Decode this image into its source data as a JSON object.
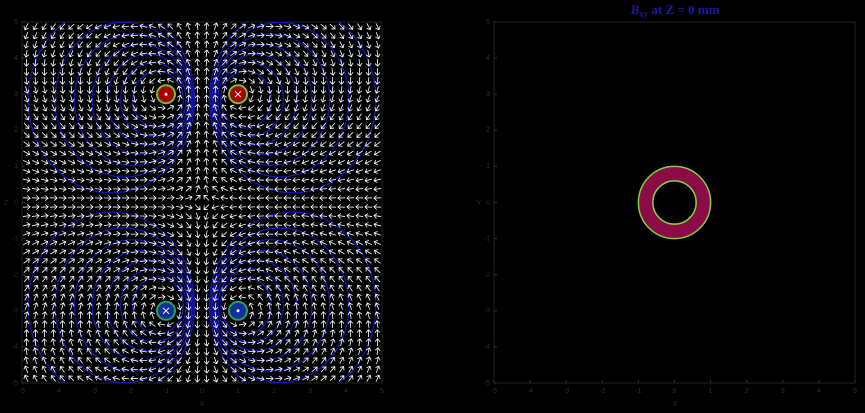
{
  "chart_data": [
    {
      "type": "vector-field",
      "xlabel": "X",
      "ylabel": "Z",
      "xlim": [
        -5,
        5
      ],
      "ylim": [
        -5,
        5
      ],
      "xticks": [
        -5,
        -4,
        -3,
        -2,
        -1,
        0,
        1,
        2,
        3,
        4,
        5
      ],
      "yticks": [
        -5,
        -4,
        -3,
        -2,
        -1,
        0,
        1,
        2,
        3,
        4,
        5
      ],
      "arrow_color": "#ffffff",
      "line_color": "#1a1adc",
      "coils": [
        {
          "x": -1,
          "y": 3,
          "current": 1,
          "color": "#a80000",
          "edge": "#6fbf3a"
        },
        {
          "x": 1,
          "y": 3,
          "current": -1,
          "color": "#a80000",
          "edge": "#6fbf3a"
        },
        {
          "x": -1,
          "y": -3,
          "current": -1,
          "color": "#1030a0",
          "edge": "#2fa04a"
        },
        {
          "x": 1,
          "y": -3,
          "current": 1,
          "color": "#1030a0",
          "edge": "#2fa04a"
        }
      ]
    },
    {
      "type": "ring",
      "title": "B",
      "title_sub": "xy",
      "title_rest": " at Z = 0 mm",
      "xlabel": "X",
      "ylabel": "Y",
      "xlim": [
        -5,
        5
      ],
      "ylim": [
        -5,
        5
      ],
      "xticks": [
        -5,
        -4,
        -3,
        -2,
        -1,
        0,
        1,
        2,
        3,
        4,
        5
      ],
      "yticks": [
        -5,
        -4,
        -3,
        -2,
        -1,
        0,
        1,
        2,
        3,
        4,
        5
      ],
      "ring": {
        "inner": 0.6,
        "outer": 1,
        "color": "#8c0a46",
        "edge": "#7fd13b"
      }
    }
  ]
}
